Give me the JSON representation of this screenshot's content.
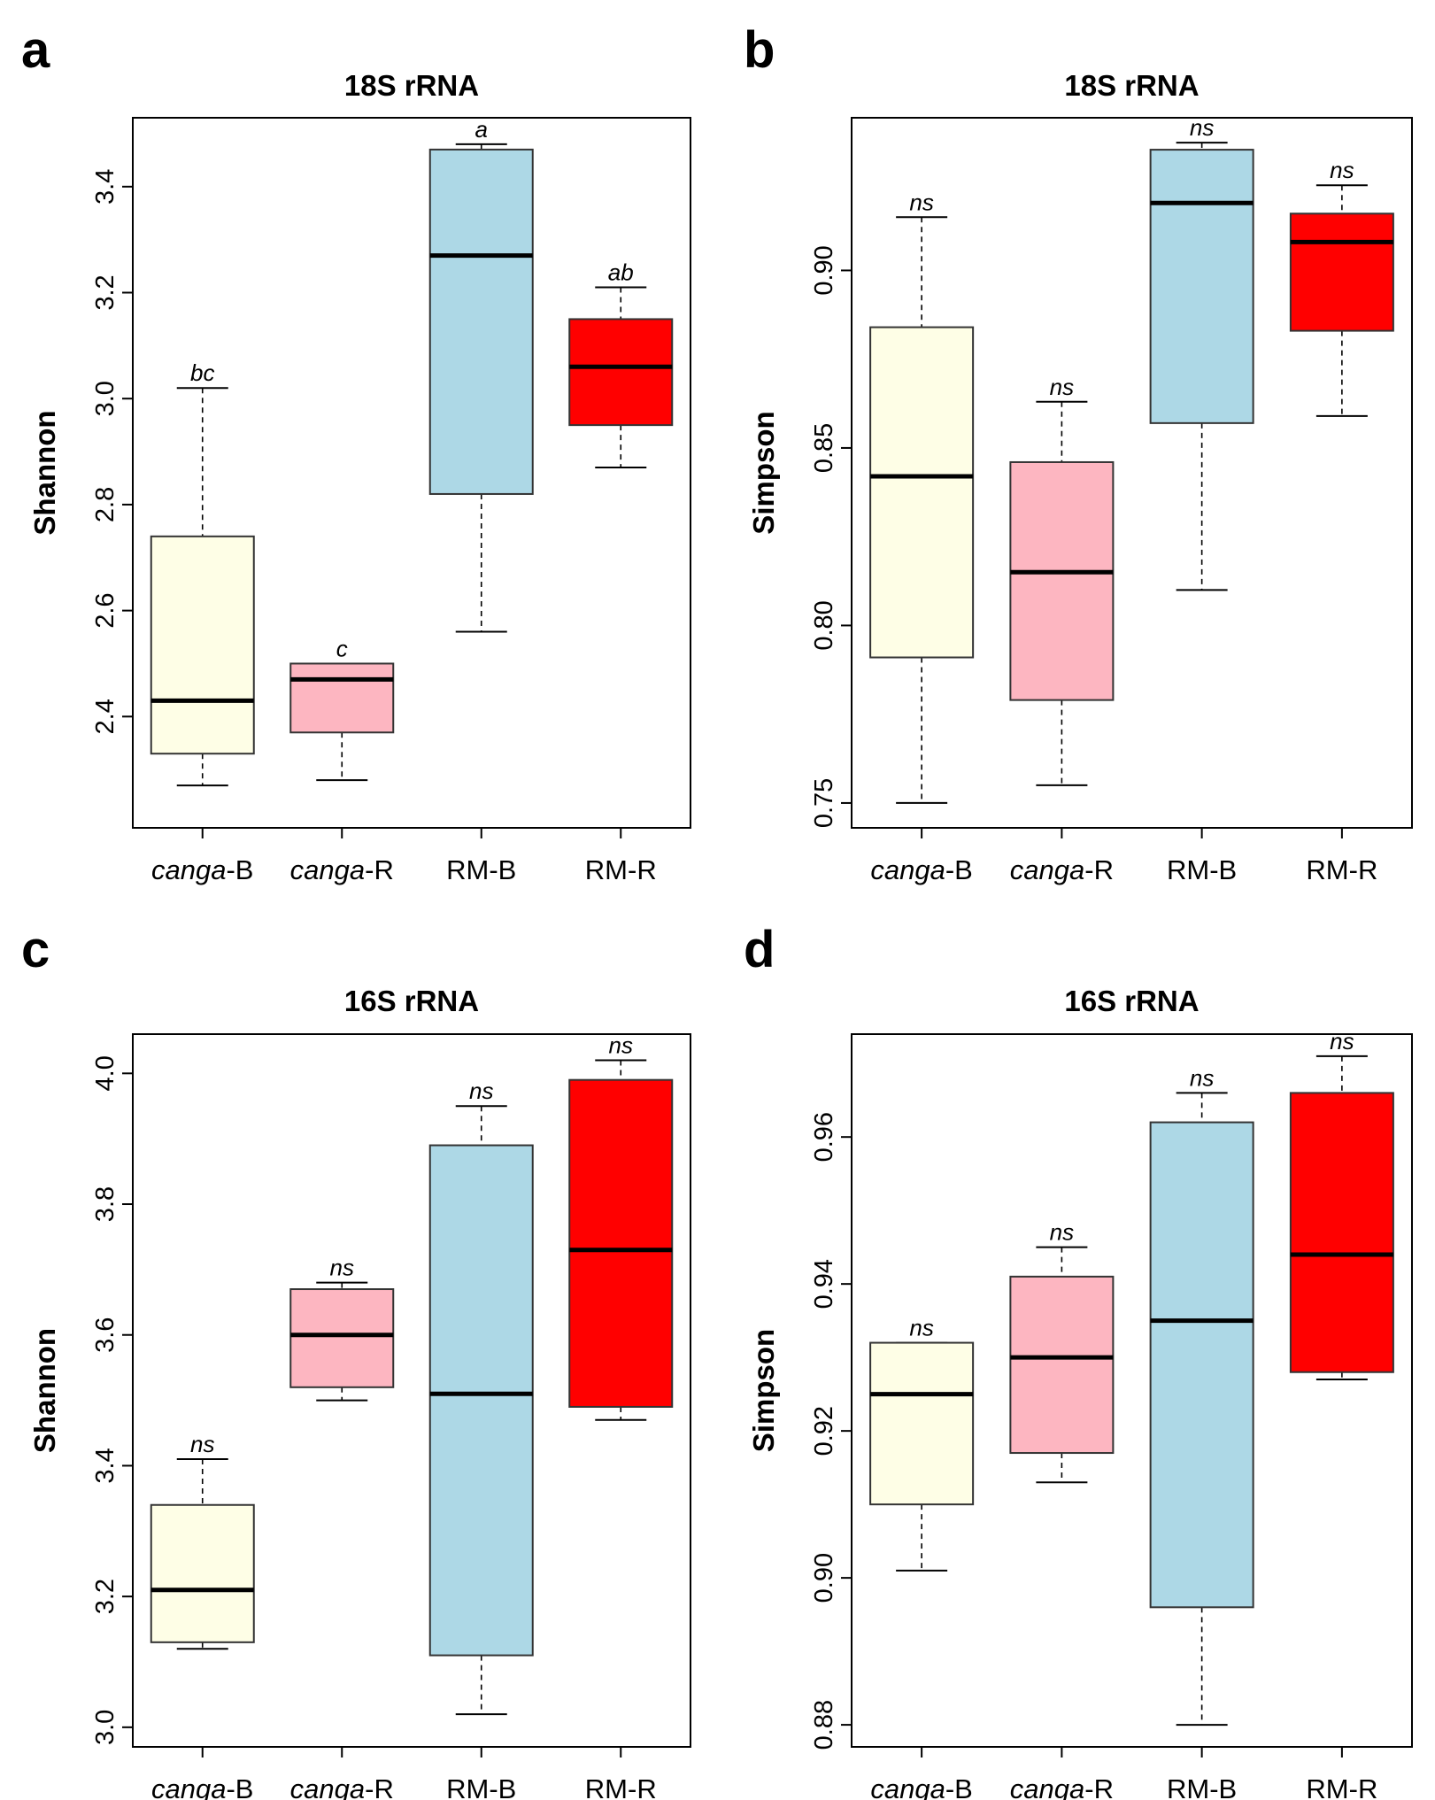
{
  "colors": {
    "canga-B": "#fefee6",
    "canga-R": "#fdb6c1",
    "RM-B": "#add8e6",
    "RM-R": "#ff0000"
  },
  "chart_data": [
    {
      "panel": "a",
      "type": "box",
      "title": "18S rRNA",
      "ylabel": "Shannon",
      "xlabel": "",
      "ylim": [
        2.19,
        3.53
      ],
      "yticks": [
        2.4,
        2.6,
        2.8,
        3.0,
        3.2,
        3.4
      ],
      "ytick_labels": [
        "2.4",
        "2.6",
        "2.8",
        "3.0",
        "3.2",
        "3.4"
      ],
      "categories": [
        {
          "italic": "canga",
          "suffix": "-B",
          "key": "canga-B"
        },
        {
          "italic": "canga",
          "suffix": "-R",
          "key": "canga-R"
        },
        {
          "italic": "",
          "suffix": "RM-B",
          "key": "RM-B"
        },
        {
          "italic": "",
          "suffix": "RM-R",
          "key": "RM-R"
        }
      ],
      "boxes": [
        {
          "min": 2.27,
          "q1": 2.33,
          "median": 2.43,
          "q3": 2.74,
          "max": 3.02,
          "sig": "bc"
        },
        {
          "min": 2.28,
          "q1": 2.37,
          "median": 2.47,
          "q3": 2.5,
          "max": 2.5,
          "sig": "c"
        },
        {
          "min": 2.56,
          "q1": 2.82,
          "median": 3.27,
          "q3": 3.47,
          "max": 3.48,
          "sig": "a"
        },
        {
          "min": 2.87,
          "q1": 2.95,
          "median": 3.06,
          "q3": 3.15,
          "max": 3.21,
          "sig": "ab"
        }
      ]
    },
    {
      "panel": "b",
      "type": "box",
      "title": "18S rRNA",
      "ylabel": "Simpson",
      "xlabel": "",
      "ylim": [
        0.743,
        0.943
      ],
      "yticks": [
        0.75,
        0.8,
        0.85,
        0.9
      ],
      "ytick_labels": [
        "0.75",
        "0.80",
        "0.85",
        "0.90"
      ],
      "categories": [
        {
          "italic": "canga",
          "suffix": "-B",
          "key": "canga-B"
        },
        {
          "italic": "canga",
          "suffix": "-R",
          "key": "canga-R"
        },
        {
          "italic": "",
          "suffix": "RM-B",
          "key": "RM-B"
        },
        {
          "italic": "",
          "suffix": "RM-R",
          "key": "RM-R"
        }
      ],
      "boxes": [
        {
          "min": 0.75,
          "q1": 0.791,
          "median": 0.842,
          "q3": 0.884,
          "max": 0.915,
          "sig": "ns"
        },
        {
          "min": 0.755,
          "q1": 0.779,
          "median": 0.815,
          "q3": 0.846,
          "max": 0.863,
          "sig": "ns"
        },
        {
          "min": 0.81,
          "q1": 0.857,
          "median": 0.919,
          "q3": 0.934,
          "max": 0.936,
          "sig": "ns"
        },
        {
          "min": 0.859,
          "q1": 0.883,
          "median": 0.908,
          "q3": 0.916,
          "max": 0.924,
          "sig": "ns"
        }
      ]
    },
    {
      "panel": "c",
      "type": "box",
      "title": "16S rRNA",
      "ylabel": "Shannon",
      "xlabel": "",
      "ylim": [
        2.97,
        4.06
      ],
      "yticks": [
        3.0,
        3.2,
        3.4,
        3.6,
        3.8,
        4.0
      ],
      "ytick_labels": [
        "3.0",
        "3.2",
        "3.4",
        "3.6",
        "3.8",
        "4.0"
      ],
      "categories": [
        {
          "italic": "canga",
          "suffix": "-B",
          "key": "canga-B"
        },
        {
          "italic": "canga",
          "suffix": "-R",
          "key": "canga-R"
        },
        {
          "italic": "",
          "suffix": "RM-B",
          "key": "RM-B"
        },
        {
          "italic": "",
          "suffix": "RM-R",
          "key": "RM-R"
        }
      ],
      "boxes": [
        {
          "min": 3.12,
          "q1": 3.13,
          "median": 3.21,
          "q3": 3.34,
          "max": 3.41,
          "sig": "ns"
        },
        {
          "min": 3.5,
          "q1": 3.52,
          "median": 3.6,
          "q3": 3.67,
          "max": 3.68,
          "sig": "ns"
        },
        {
          "min": 3.02,
          "q1": 3.11,
          "median": 3.51,
          "q3": 3.89,
          "max": 3.95,
          "sig": "ns"
        },
        {
          "min": 3.47,
          "q1": 3.49,
          "median": 3.73,
          "q3": 3.99,
          "max": 4.02,
          "sig": "ns"
        }
      ]
    },
    {
      "panel": "d",
      "type": "box",
      "title": "16S rRNA",
      "ylabel": "Simpson",
      "xlabel": "",
      "ylim": [
        0.877,
        0.974
      ],
      "yticks": [
        0.88,
        0.9,
        0.92,
        0.94,
        0.96
      ],
      "ytick_labels": [
        "0.88",
        "0.90",
        "0.92",
        "0.94",
        "0.96"
      ],
      "categories": [
        {
          "italic": "canga",
          "suffix": "-B",
          "key": "canga-B"
        },
        {
          "italic": "canga",
          "suffix": "-R",
          "key": "canga-R"
        },
        {
          "italic": "",
          "suffix": "RM-B",
          "key": "RM-B"
        },
        {
          "italic": "",
          "suffix": "RM-R",
          "key": "RM-R"
        }
      ],
      "boxes": [
        {
          "min": 0.901,
          "q1": 0.91,
          "median": 0.925,
          "q3": 0.932,
          "max": 0.932,
          "sig": "ns"
        },
        {
          "min": 0.913,
          "q1": 0.917,
          "median": 0.93,
          "q3": 0.941,
          "max": 0.945,
          "sig": "ns"
        },
        {
          "min": 0.88,
          "q1": 0.896,
          "median": 0.935,
          "q3": 0.962,
          "max": 0.966,
          "sig": "ns"
        },
        {
          "min": 0.927,
          "q1": 0.928,
          "median": 0.944,
          "q3": 0.966,
          "max": 0.971,
          "sig": "ns"
        }
      ]
    }
  ]
}
